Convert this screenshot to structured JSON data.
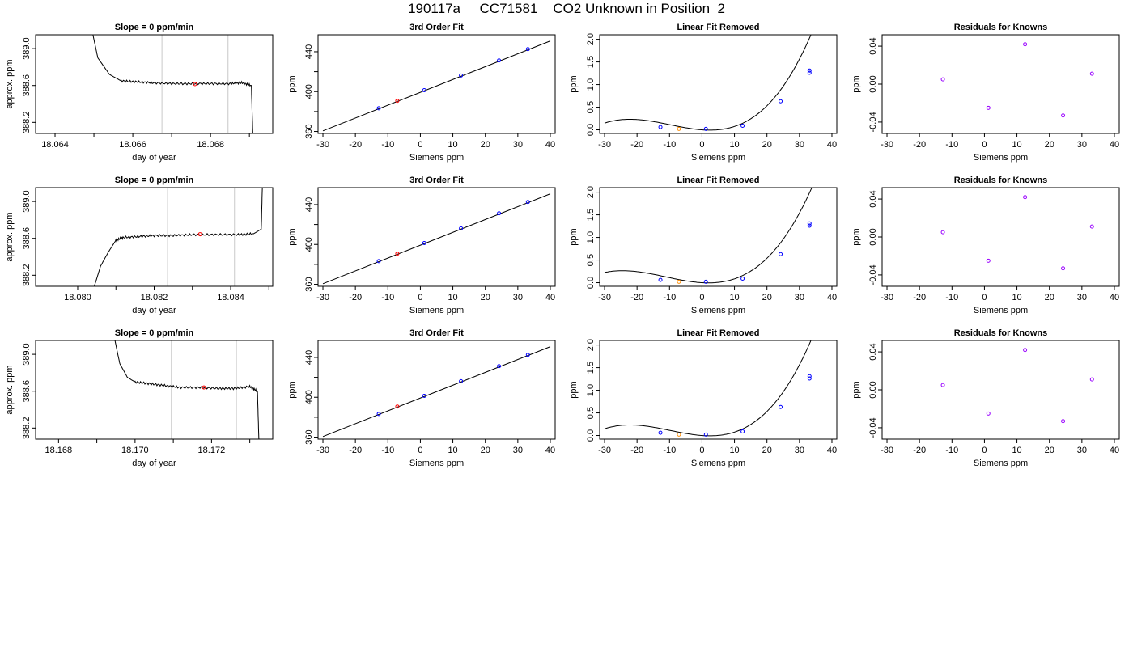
{
  "page_title": "190117a     CC71581    CO2 Unknown in Position  2",
  "colors": {
    "line": "#000000",
    "point_known": "#0000ff",
    "point_unknown_fit": "#ff0000",
    "point_unknown_resid": "#ff8c00",
    "point_resid": "#9900ff",
    "grid_vline": "#c8c8c8"
  },
  "chart_data": [
    {
      "type": "line",
      "title": "Slope =  0  ppm/min",
      "xlabel": "day of year",
      "ylabel": "approx. ppm",
      "xlim": [
        18.0635,
        18.0696
      ],
      "ylim": [
        388.08,
        389.15
      ],
      "xticks": [
        18.064,
        18.065,
        18.066,
        18.067,
        18.068,
        18.069
      ],
      "xtick_labels": [
        "18.064",
        "",
        "18.066",
        "",
        "18.068",
        ""
      ],
      "yticks": [
        388.2,
        388.6,
        389.0
      ],
      "ytick_labels": [
        "388.2",
        "388.6",
        "389.0"
      ],
      "vlines": [
        18.06675,
        18.06845
      ],
      "series": [
        {
          "x": [
            18.0648,
            18.0651,
            18.0654,
            18.0657,
            18.0661,
            18.0665,
            18.067,
            18.0675,
            18.068,
            18.0685,
            18.0688,
            18.06905,
            18.0691
          ],
          "y": [
            389.5,
            388.9,
            388.72,
            388.65,
            388.64,
            388.63,
            388.62,
            388.62,
            388.62,
            388.62,
            388.63,
            388.6,
            387.9
          ]
        }
      ],
      "marker": {
        "x": 18.0676,
        "y": 388.615
      }
    },
    {
      "type": "scatter",
      "title": "3rd Order Fit",
      "xlabel": "Siemens ppm",
      "ylabel": "ppm",
      "xlim": [
        -31.5,
        41.5
      ],
      "ylim": [
        358,
        457
      ],
      "xticks": [
        -30,
        -20,
        -10,
        0,
        10,
        20,
        30,
        40
      ],
      "xtick_labels": [
        "-30",
        "-20",
        "-10",
        "0",
        "10",
        "20",
        "30",
        "40"
      ],
      "yticks": [
        360,
        380,
        400,
        420,
        440
      ],
      "ytick_labels": [
        "360",
        "",
        "400",
        "",
        "440"
      ],
      "fit_line": {
        "x": [
          -30,
          40
        ],
        "y": [
          360.6,
          450.8
        ]
      },
      "points_known": {
        "x": [
          -12.8,
          1.2,
          12.5,
          24.2,
          33.1
        ],
        "y": [
          383.3,
          401.4,
          416.1,
          431.2,
          442.6
        ]
      },
      "points_unknown": {
        "x": [
          -7.1
        ],
        "y": [
          390.7
        ]
      }
    },
    {
      "type": "scatter",
      "title": "Linear Fit Removed",
      "xlabel": "Siemens ppm",
      "ylabel": "ppm",
      "xlim": [
        -31.5,
        41.5
      ],
      "ylim": [
        -0.08,
        2.1
      ],
      "xticks": [
        -30,
        -20,
        -10,
        0,
        10,
        20,
        30,
        40
      ],
      "xtick_labels": [
        "-30",
        "-20",
        "-10",
        "0",
        "10",
        "20",
        "30",
        "40"
      ],
      "yticks": [
        0,
        0.5,
        1,
        1.5,
        2
      ],
      "ytick_labels": [
        "0.0",
        "0.5",
        "1.0",
        "1.5",
        "2.0"
      ],
      "curve": {
        "a": 3.2e-05,
        "b": 0.00095,
        "c": -0.0052,
        "d": 0.0
      },
      "points_known": {
        "x": [
          -12.8,
          1.2,
          12.5,
          24.2,
          33.1,
          33.1
        ],
        "y": [
          0.06,
          0.02,
          0.09,
          0.63,
          1.26,
          1.31
        ]
      },
      "points_unknown": {
        "x": [
          -7.1
        ],
        "y": [
          0.02
        ]
      }
    },
    {
      "type": "scatter",
      "title": "Residuals for Knowns",
      "xlabel": "Siemens ppm",
      "ylabel": "ppm",
      "xlim": [
        -31.5,
        41.5
      ],
      "ylim": [
        -0.052,
        0.052
      ],
      "xticks": [
        -30,
        -20,
        -10,
        0,
        10,
        20,
        30,
        40
      ],
      "xtick_labels": [
        "-30",
        "-20",
        "-10",
        "0",
        "10",
        "20",
        "30",
        "40"
      ],
      "yticks": [
        -0.04,
        0,
        0.04
      ],
      "ytick_labels": [
        "-0.04",
        "0.00",
        "0.04"
      ],
      "points": {
        "x": [
          -12.8,
          1.2,
          12.5,
          24.2,
          33.1
        ],
        "y": [
          0.005,
          -0.025,
          0.042,
          -0.033,
          0.011
        ]
      }
    },
    {
      "type": "line",
      "title": "Slope =  0  ppm/min",
      "xlabel": "day of year",
      "ylabel": "approx. ppm",
      "xlim": [
        18.0789,
        18.0851
      ],
      "ylim": [
        388.08,
        389.15
      ],
      "xticks": [
        18.08,
        18.081,
        18.082,
        18.083,
        18.084,
        18.085
      ],
      "xtick_labels": [
        "18.080",
        "",
        "18.082",
        "",
        "18.084",
        ""
      ],
      "yticks": [
        388.2,
        388.6,
        389.0
      ],
      "ytick_labels": [
        "388.2",
        "388.6",
        "389.0"
      ],
      "vlines": [
        18.08235,
        18.0841
      ],
      "series": [
        {
          "x": [
            18.0803,
            18.0806,
            18.0808,
            18.081,
            18.0812,
            18.0816,
            18.082,
            18.0825,
            18.083,
            18.0836,
            18.0842,
            18.0846,
            18.0848,
            18.08485
          ],
          "y": [
            387.9,
            388.3,
            388.45,
            388.58,
            388.61,
            388.62,
            388.63,
            388.63,
            388.64,
            388.64,
            388.64,
            388.65,
            388.7,
            389.5
          ]
        }
      ],
      "marker": {
        "x": 18.0832,
        "y": 388.645
      }
    },
    {
      "type": "scatter",
      "title": "3rd Order Fit",
      "xlabel": "Siemens ppm",
      "ylabel": "ppm",
      "xlim": [
        -31.5,
        41.5
      ],
      "ylim": [
        358,
        457
      ],
      "xticks": [
        -30,
        -20,
        -10,
        0,
        10,
        20,
        30,
        40
      ],
      "xtick_labels": [
        "-30",
        "-20",
        "-10",
        "0",
        "10",
        "20",
        "30",
        "40"
      ],
      "yticks": [
        360,
        380,
        400,
        420,
        440
      ],
      "ytick_labels": [
        "360",
        "",
        "400",
        "",
        "440"
      ],
      "fit_line": {
        "x": [
          -30,
          40
        ],
        "y": [
          360.6,
          450.8
        ]
      },
      "points_known": {
        "x": [
          -12.8,
          1.2,
          12.5,
          24.2,
          33.1
        ],
        "y": [
          383.3,
          401.4,
          416.1,
          431.2,
          442.6
        ]
      },
      "points_unknown": {
        "x": [
          -7.1
        ],
        "y": [
          390.7
        ]
      }
    },
    {
      "type": "scatter",
      "title": "Linear Fit Removed",
      "xlabel": "Siemens ppm",
      "ylabel": "ppm",
      "xlim": [
        -31.5,
        41.5
      ],
      "ylim": [
        -0.08,
        2.1
      ],
      "xticks": [
        -30,
        -20,
        -10,
        0,
        10,
        20,
        30,
        40
      ],
      "xtick_labels": [
        "-30",
        "-20",
        "-10",
        "0",
        "10",
        "20",
        "30",
        "40"
      ],
      "yticks": [
        0,
        0.5,
        1,
        1.5,
        2
      ],
      "ytick_labels": [
        "0.0",
        "0.5",
        "1.0",
        "1.5",
        "2.0"
      ],
      "curve": {
        "a": 2.9e-05,
        "b": 0.00098,
        "c": -0.0042,
        "d": 0.0
      },
      "points_known": {
        "x": [
          -12.8,
          1.2,
          12.5,
          24.2,
          33.1,
          33.1
        ],
        "y": [
          0.06,
          0.02,
          0.09,
          0.63,
          1.26,
          1.31
        ]
      },
      "points_unknown": {
        "x": [
          -7.1
        ],
        "y": [
          0.02
        ]
      }
    },
    {
      "type": "scatter",
      "title": "Residuals for Knowns",
      "xlabel": "Siemens ppm",
      "ylabel": "ppm",
      "xlim": [
        -31.5,
        41.5
      ],
      "ylim": [
        -0.052,
        0.052
      ],
      "xticks": [
        -30,
        -20,
        -10,
        0,
        10,
        20,
        30,
        40
      ],
      "xtick_labels": [
        "-30",
        "-20",
        "-10",
        "0",
        "10",
        "20",
        "30",
        "40"
      ],
      "yticks": [
        -0.04,
        0,
        0.04
      ],
      "ytick_labels": [
        "-0.04",
        "0.00",
        "0.04"
      ],
      "points": {
        "x": [
          -12.8,
          1.2,
          12.5,
          24.2,
          33.1
        ],
        "y": [
          0.005,
          -0.025,
          0.042,
          -0.033,
          0.011
        ]
      }
    },
    {
      "type": "line",
      "title": "Slope =  0  ppm/min",
      "xlabel": "day of year",
      "ylabel": "approx. ppm",
      "xlim": [
        18.1674,
        18.1736
      ],
      "ylim": [
        388.08,
        389.15
      ],
      "xticks": [
        18.168,
        18.169,
        18.17,
        18.171,
        18.172,
        18.173
      ],
      "xtick_labels": [
        "18.168",
        "",
        "18.170",
        "",
        "18.172",
        ""
      ],
      "yticks": [
        388.2,
        388.6,
        389.0
      ],
      "ytick_labels": [
        "388.2",
        "388.6",
        "389.0"
      ],
      "vlines": [
        18.17095,
        18.17265
      ],
      "series": [
        {
          "x": [
            18.1693,
            18.1696,
            18.1698,
            18.17,
            18.1704,
            18.1708,
            18.1712,
            18.1717,
            18.1722,
            18.1726,
            18.173,
            18.1732,
            18.17325
          ],
          "y": [
            389.5,
            388.9,
            388.75,
            388.7,
            388.68,
            388.66,
            388.64,
            388.64,
            388.63,
            388.63,
            388.65,
            388.6,
            387.9
          ]
        }
      ],
      "marker": {
        "x": 18.1718,
        "y": 388.64
      }
    },
    {
      "type": "scatter",
      "title": "3rd Order Fit",
      "xlabel": "Siemens ppm",
      "ylabel": "ppm",
      "xlim": [
        -31.5,
        41.5
      ],
      "ylim": [
        358,
        457
      ],
      "xticks": [
        -30,
        -20,
        -10,
        0,
        10,
        20,
        30,
        40
      ],
      "xtick_labels": [
        "-30",
        "-20",
        "-10",
        "0",
        "10",
        "20",
        "30",
        "40"
      ],
      "yticks": [
        360,
        380,
        400,
        420,
        440
      ],
      "ytick_labels": [
        "360",
        "",
        "400",
        "",
        "440"
      ],
      "fit_line": {
        "x": [
          -30,
          40
        ],
        "y": [
          360.6,
          450.8
        ]
      },
      "points_known": {
        "x": [
          -12.8,
          1.2,
          12.5,
          24.2,
          33.1
        ],
        "y": [
          383.3,
          401.4,
          416.1,
          431.2,
          442.6
        ]
      },
      "points_unknown": {
        "x": [
          -7.1
        ],
        "y": [
          390.7
        ]
      }
    },
    {
      "type": "scatter",
      "title": "Linear Fit Removed",
      "xlabel": "Siemens ppm",
      "ylabel": "ppm",
      "xlim": [
        -31.5,
        41.5
      ],
      "ylim": [
        -0.08,
        2.1
      ],
      "xticks": [
        -30,
        -20,
        -10,
        0,
        10,
        20,
        30,
        40
      ],
      "xtick_labels": [
        "-30",
        "-20",
        "-10",
        "0",
        "10",
        "20",
        "30",
        "40"
      ],
      "yticks": [
        0,
        0.5,
        1,
        1.5,
        2
      ],
      "ytick_labels": [
        "0.0",
        "0.5",
        "1.0",
        "1.5",
        "2.0"
      ],
      "curve": {
        "a": 3.2e-05,
        "b": 0.00095,
        "c": -0.0052,
        "d": 0.0
      },
      "points_known": {
        "x": [
          -12.8,
          1.2,
          12.5,
          24.2,
          33.1,
          33.1
        ],
        "y": [
          0.06,
          0.02,
          0.09,
          0.63,
          1.26,
          1.31
        ]
      },
      "points_unknown": {
        "x": [
          -7.1
        ],
        "y": [
          0.02
        ]
      }
    },
    {
      "type": "scatter",
      "title": "Residuals for Knowns",
      "xlabel": "Siemens ppm",
      "ylabel": "ppm",
      "xlim": [
        -31.5,
        41.5
      ],
      "ylim": [
        -0.052,
        0.052
      ],
      "xticks": [
        -30,
        -20,
        -10,
        0,
        10,
        20,
        30,
        40
      ],
      "xtick_labels": [
        "-30",
        "-20",
        "-10",
        "0",
        "10",
        "20",
        "30",
        "40"
      ],
      "yticks": [
        -0.04,
        0,
        0.04
      ],
      "ytick_labels": [
        "-0.04",
        "0.00",
        "0.04"
      ],
      "points": {
        "x": [
          -12.8,
          1.2,
          12.5,
          24.2,
          33.1
        ],
        "y": [
          0.005,
          -0.025,
          0.042,
          -0.033,
          0.011
        ]
      }
    }
  ]
}
